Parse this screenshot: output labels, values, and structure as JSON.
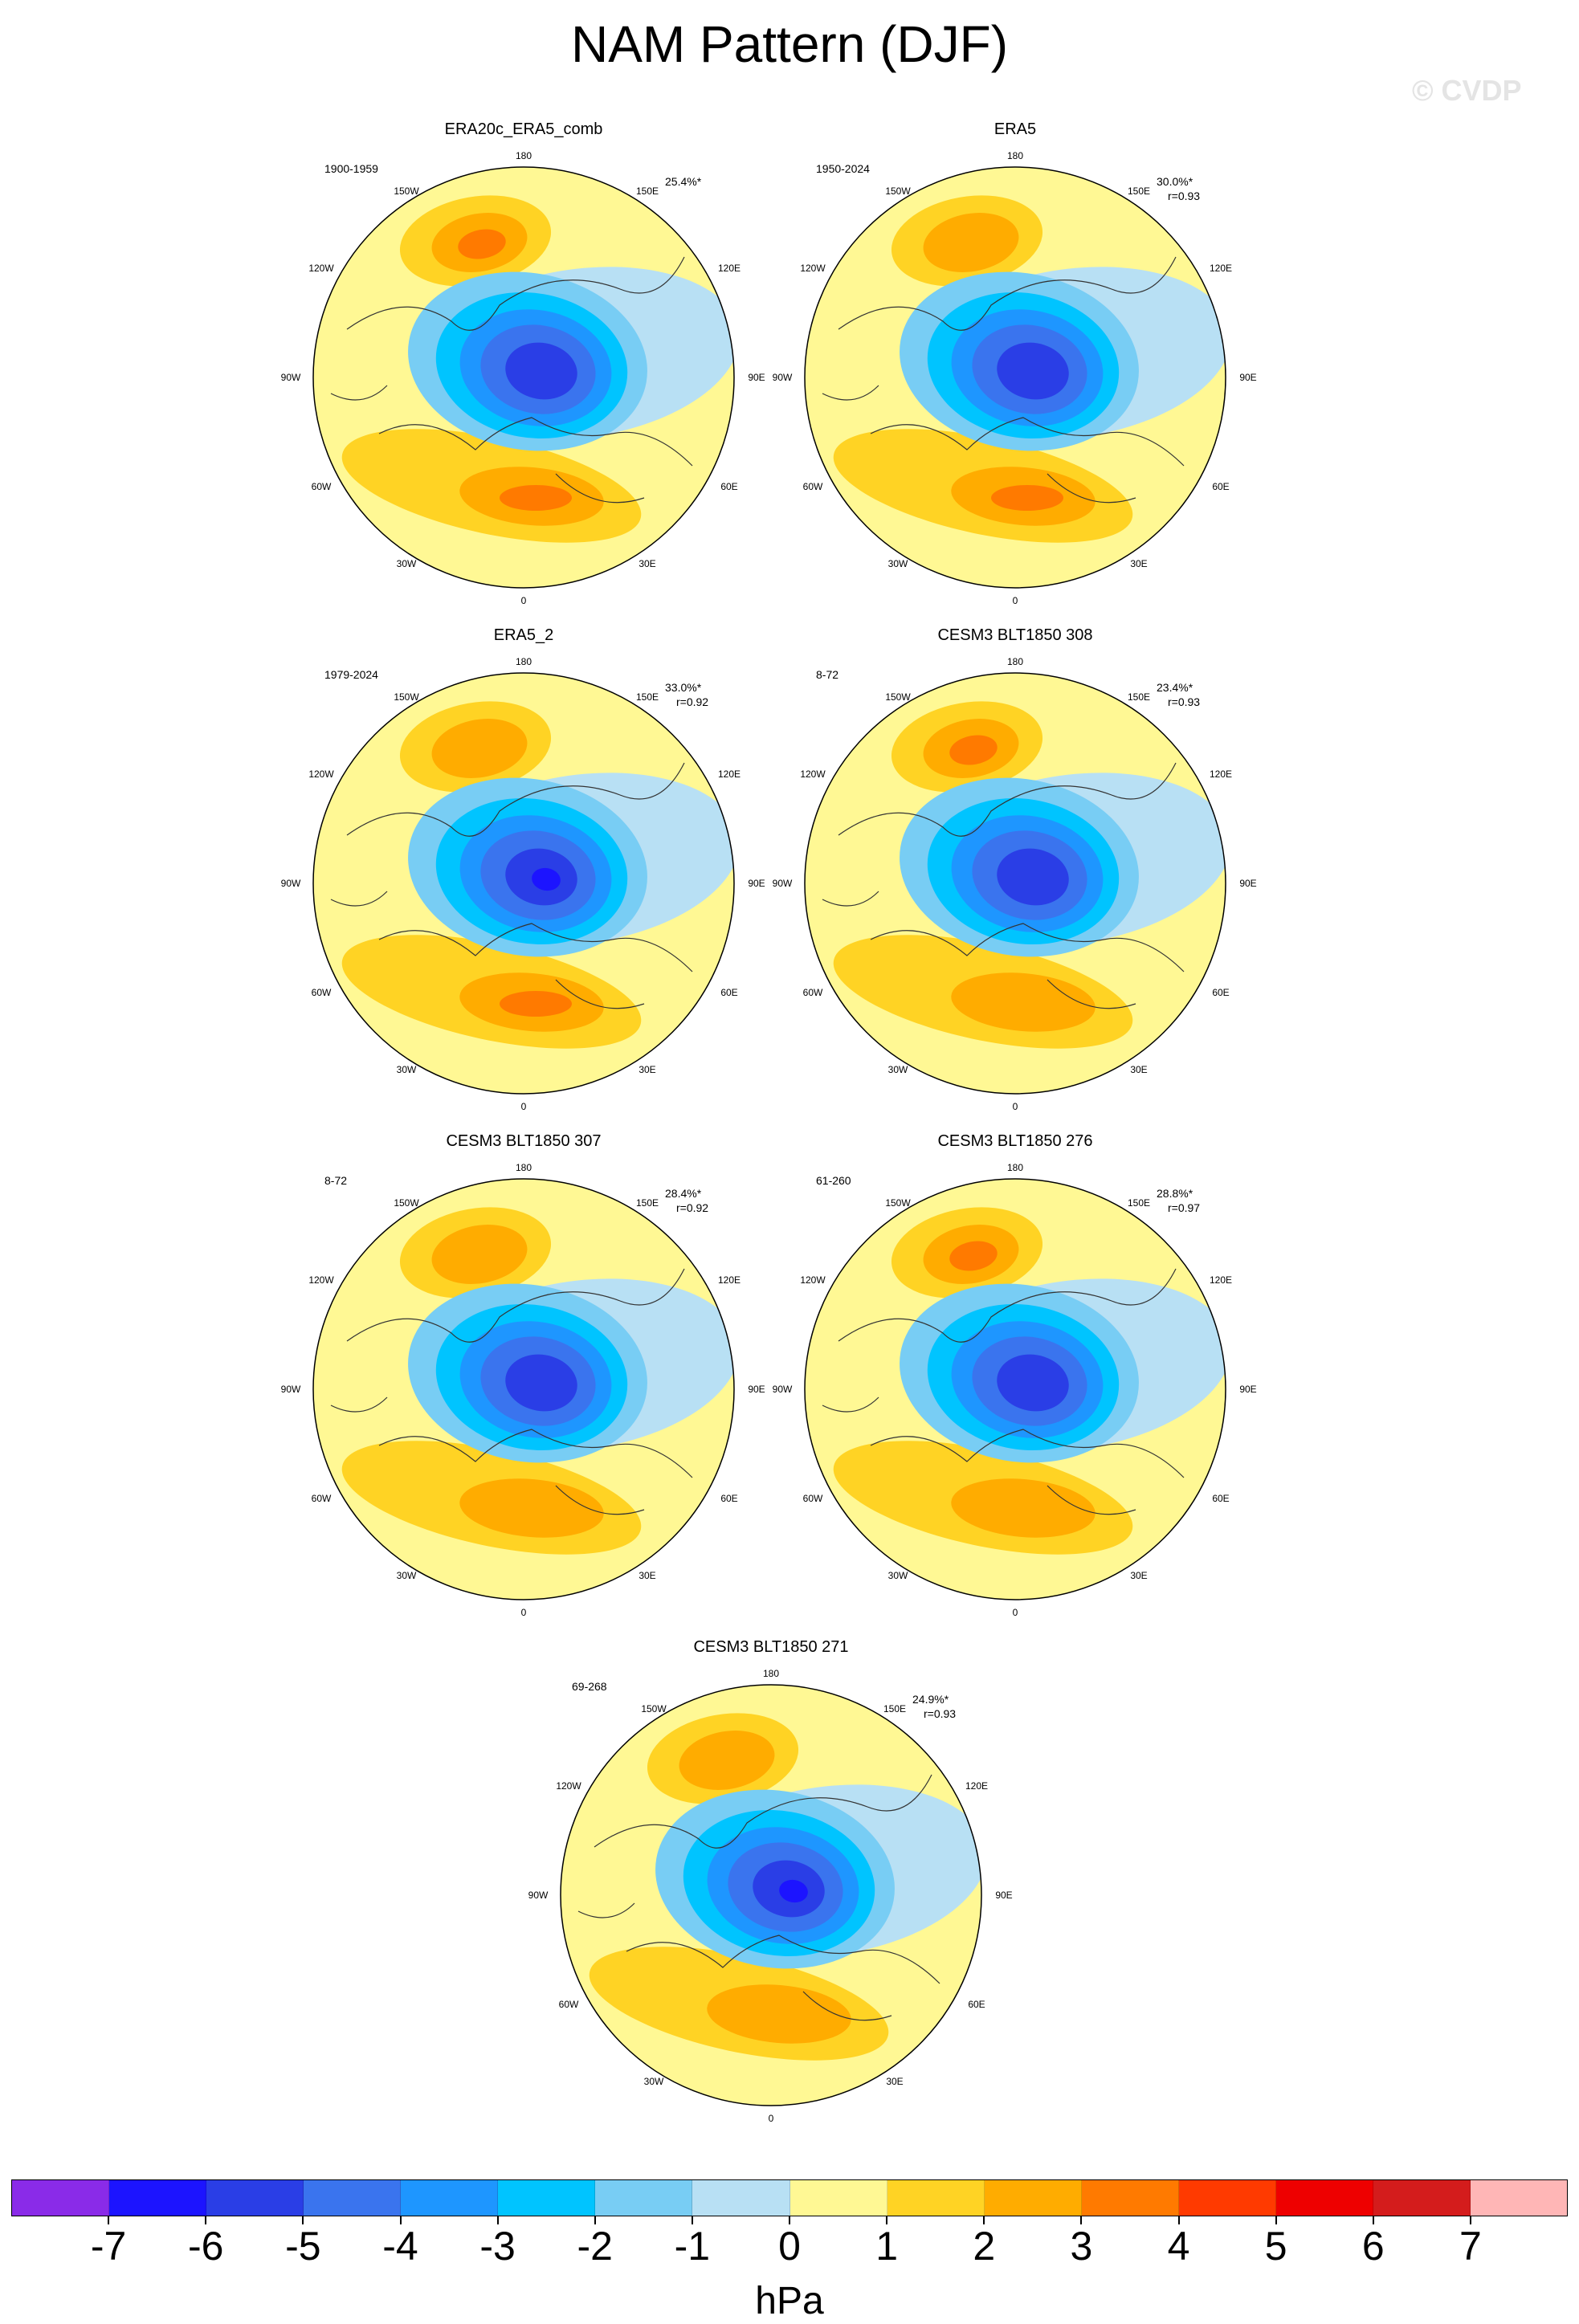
{
  "title": "NAM Pattern (DJF)",
  "watermark": "© CVDP",
  "panels": [
    {
      "title": "ERA20c_ERA5_comb",
      "years": "1900-1959",
      "pct": "25.4%*",
      "r": ""
    },
    {
      "title": "ERA5",
      "years": "1950-2024",
      "pct": "30.0%*",
      "r": "r=0.93"
    },
    {
      "title": "ERA5_2",
      "years": "1979-2024",
      "pct": "33.0%*",
      "r": "r=0.92"
    },
    {
      "title": "CESM3 BLT1850 308",
      "years": "8-72",
      "pct": "23.4%*",
      "r": "r=0.93"
    },
    {
      "title": "CESM3 BLT1850 307",
      "years": "8-72",
      "pct": "28.4%*",
      "r": "r=0.92"
    },
    {
      "title": "CESM3 BLT1850 276",
      "years": "61-260",
      "pct": "28.8%*",
      "r": "r=0.97"
    },
    {
      "title": "CESM3 BLT1850 271",
      "years": "69-268",
      "pct": "24.9%*",
      "r": "r=0.93"
    }
  ],
  "grid_labels": {
    "top": "180",
    "bottom": "0",
    "l150": "150W",
    "r150": "150E",
    "l120": "120W",
    "r120": "120E",
    "l90": "90W",
    "r90": "90E",
    "l60": "60W",
    "r60": "60E",
    "l30": "30W",
    "r30": "30E"
  },
  "colorbar": {
    "colors": [
      "#8a2be8",
      "#1c14ff",
      "#2a3ee6",
      "#3a74ee",
      "#1e96ff",
      "#00c4ff",
      "#78cdf4",
      "#b8e0f4",
      "#fff894",
      "#ffd324",
      "#ffac00",
      "#ff7a00",
      "#ff3a00",
      "#ee0000",
      "#d41c1c",
      "#ffb6b6"
    ],
    "labels": [
      "-7",
      "-6",
      "-5",
      "-4",
      "-3",
      "-2",
      "-1",
      "0",
      "1",
      "2",
      "3",
      "4",
      "5",
      "6",
      "7"
    ],
    "units": "hPa"
  }
}
